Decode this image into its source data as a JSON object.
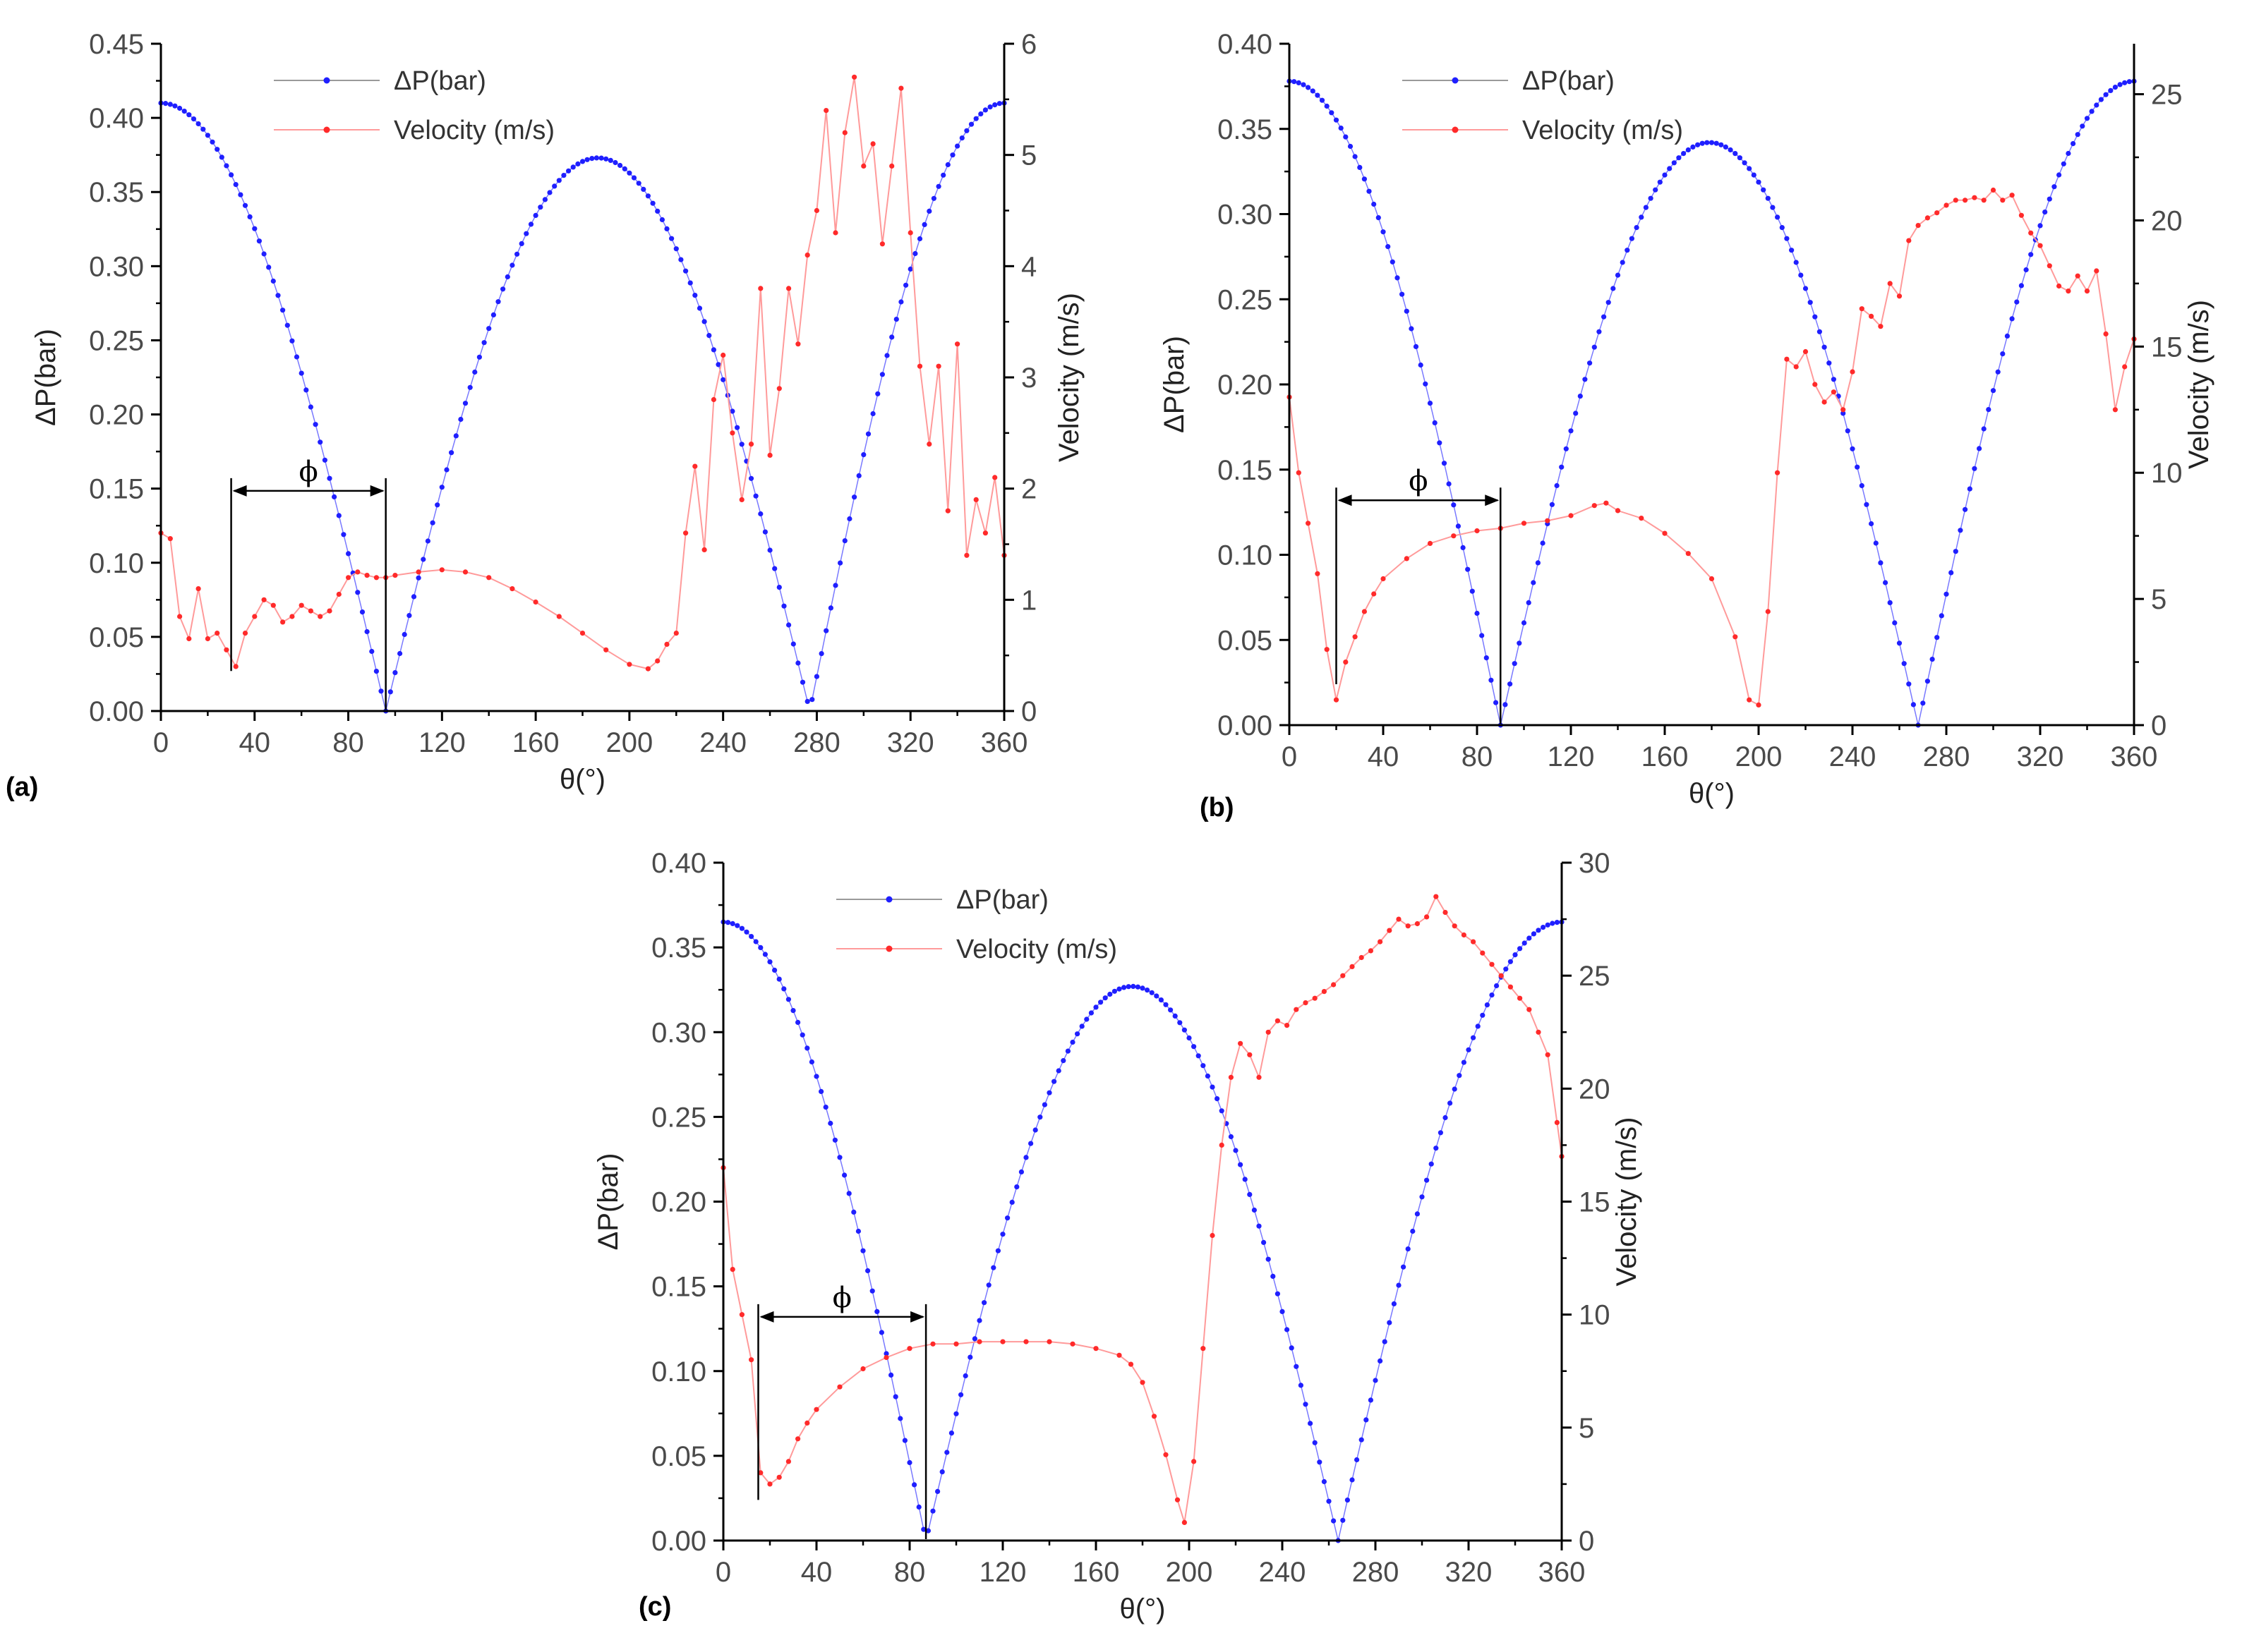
{
  "figure": {
    "colors": {
      "pressure": "#1f1fff",
      "velocity": "#ff2a2a",
      "velocity_line": "#ff9a9a",
      "axis": "#000000"
    }
  },
  "chart_data": [
    {
      "type": "line",
      "panel_label": "(a)",
      "xlabel": "θ(°)",
      "ylabel": "ΔP(bar)",
      "y2label": "Velocity (m/s)",
      "xlim": [
        0,
        360
      ],
      "ylim": [
        0,
        0.45
      ],
      "y2lim": [
        0,
        6
      ],
      "xticks": [
        "0",
        "40",
        "80",
        "120",
        "160",
        "200",
        "240",
        "280",
        "320",
        "360"
      ],
      "yticks": [
        "0.00",
        "0.05",
        "0.10",
        "0.15",
        "0.20",
        "0.25",
        "0.30",
        "0.35",
        "0.40",
        "0.45"
      ],
      "y2ticks": [
        "0",
        "1",
        "2",
        "3",
        "4",
        "5",
        "6"
      ],
      "legend": [
        "ΔP(bar)",
        "Velocity (m/s)"
      ],
      "phi_label": "ϕ",
      "phi_range": [
        30,
        96
      ],
      "pressure": {
        "name": "ΔP(bar)",
        "peak1": 0.41,
        "peak2": 0.373,
        "peak2_at": 183,
        "zero1": 96,
        "zero2": 277
      },
      "velocity": {
        "name": "Velocity (m/s)",
        "x": [
          0,
          4,
          8,
          12,
          16,
          20,
          24,
          28,
          32,
          36,
          40,
          44,
          48,
          52,
          56,
          60,
          64,
          68,
          72,
          76,
          80,
          84,
          88,
          92,
          96,
          100,
          110,
          120,
          130,
          140,
          150,
          160,
          170,
          180,
          190,
          200,
          208,
          212,
          216,
          220,
          224,
          228,
          232,
          236,
          240,
          244,
          248,
          252,
          256,
          260,
          264,
          268,
          272,
          276,
          280,
          284,
          288,
          292,
          296,
          300,
          304,
          308,
          312,
          316,
          320,
          324,
          328,
          332,
          336,
          340,
          344,
          348,
          352,
          356,
          360
        ],
        "values": [
          1.6,
          1.55,
          0.85,
          0.65,
          1.1,
          0.65,
          0.7,
          0.55,
          0.4,
          0.7,
          0.85,
          1.0,
          0.95,
          0.8,
          0.85,
          0.95,
          0.9,
          0.85,
          0.9,
          1.05,
          1.2,
          1.25,
          1.22,
          1.2,
          1.2,
          1.22,
          1.25,
          1.27,
          1.25,
          1.2,
          1.1,
          0.98,
          0.85,
          0.7,
          0.55,
          0.42,
          0.38,
          0.45,
          0.6,
          0.7,
          1.6,
          2.2,
          1.45,
          2.8,
          3.2,
          2.5,
          1.9,
          2.4,
          3.8,
          2.3,
          2.9,
          3.8,
          3.3,
          4.1,
          4.5,
          5.4,
          4.3,
          5.2,
          5.7,
          4.9,
          5.1,
          4.2,
          4.9,
          5.6,
          4.3,
          3.1,
          2.4,
          3.1,
          1.8,
          3.3,
          1.4,
          1.9,
          1.6,
          2.1,
          1.4
        ]
      }
    },
    {
      "type": "line",
      "panel_label": "(b)",
      "xlabel": "θ(°)",
      "ylabel": "ΔP(bar)",
      "y2label": "Velocity (m/s)",
      "xlim": [
        0,
        360
      ],
      "ylim": [
        0,
        0.4
      ],
      "y2lim": [
        0,
        27
      ],
      "xticks": [
        "0",
        "40",
        "80",
        "120",
        "160",
        "200",
        "240",
        "280",
        "320",
        "360"
      ],
      "yticks": [
        "0.00",
        "0.05",
        "0.10",
        "0.15",
        "0.20",
        "0.25",
        "0.30",
        "0.35",
        "0.40"
      ],
      "y2ticks": [
        "0",
        "5",
        "10",
        "15",
        "20",
        "25"
      ],
      "legend": [
        "ΔP(bar)",
        "Velocity (m/s)"
      ],
      "phi_label": "ϕ",
      "phi_range": [
        20,
        90
      ],
      "pressure": {
        "name": "ΔP(bar)",
        "peak1": 0.378,
        "peak2": 0.342,
        "peak2_at": 178,
        "zero1": 90,
        "zero2": 268
      },
      "velocity": {
        "name": "Velocity (m/s)",
        "x": [
          0,
          4,
          8,
          12,
          16,
          20,
          24,
          28,
          32,
          36,
          40,
          50,
          60,
          70,
          80,
          90,
          100,
          110,
          120,
          130,
          135,
          140,
          150,
          160,
          170,
          180,
          190,
          196,
          200,
          204,
          208,
          212,
          216,
          220,
          224,
          228,
          232,
          236,
          240,
          244,
          248,
          252,
          256,
          260,
          264,
          268,
          272,
          276,
          280,
          284,
          288,
          292,
          296,
          300,
          304,
          308,
          312,
          316,
          320,
          324,
          328,
          332,
          336,
          340,
          344,
          348,
          352,
          356,
          360
        ],
        "values": [
          13,
          10,
          8,
          6,
          3,
          1,
          2.5,
          3.5,
          4.5,
          5.2,
          5.8,
          6.6,
          7.2,
          7.5,
          7.7,
          7.8,
          8.0,
          8.1,
          8.3,
          8.7,
          8.8,
          8.5,
          8.2,
          7.6,
          6.8,
          5.8,
          3.5,
          1.0,
          0.8,
          4.5,
          10,
          14.5,
          14.2,
          14.8,
          13.5,
          12.8,
          13.2,
          12.5,
          14.0,
          16.5,
          16.2,
          15.8,
          17.5,
          17.0,
          19.2,
          19.8,
          20.1,
          20.3,
          20.6,
          20.8,
          20.8,
          20.9,
          20.8,
          21.2,
          20.8,
          21.0,
          20.2,
          19.5,
          19.0,
          18.2,
          17.4,
          17.2,
          17.8,
          17.2,
          18.0,
          15.5,
          12.5,
          14.2,
          15.3
        ]
      }
    },
    {
      "type": "line",
      "panel_label": "(c)",
      "xlabel": "θ(°)",
      "ylabel": "ΔP(bar)",
      "y2label": "Velocity (m/s)",
      "xlim": [
        0,
        360
      ],
      "ylim": [
        0,
        0.4
      ],
      "y2lim": [
        0,
        30
      ],
      "xticks": [
        "0",
        "40",
        "80",
        "120",
        "160",
        "200",
        "240",
        "280",
        "320",
        "360"
      ],
      "yticks": [
        "0.00",
        "0.05",
        "0.10",
        "0.15",
        "0.20",
        "0.25",
        "0.30",
        "0.35",
        "0.40"
      ],
      "y2ticks": [
        "0",
        "5",
        "10",
        "15",
        "20",
        "25",
        "30"
      ],
      "legend": [
        "ΔP(bar)",
        "Velocity (m/s)"
      ],
      "phi_label": "ϕ",
      "phi_range": [
        15,
        87
      ],
      "pressure": {
        "name": "ΔP(bar)",
        "peak1": 0.365,
        "peak2": 0.327,
        "peak2_at": 175,
        "zero1": 87,
        "zero2": 264
      },
      "velocity": {
        "name": "Velocity (m/s)",
        "x": [
          0,
          4,
          8,
          12,
          16,
          20,
          24,
          28,
          32,
          36,
          40,
          50,
          60,
          70,
          80,
          90,
          100,
          110,
          120,
          130,
          140,
          150,
          160,
          170,
          175,
          180,
          185,
          190,
          195,
          198,
          202,
          206,
          210,
          214,
          218,
          222,
          226,
          230,
          234,
          238,
          242,
          246,
          250,
          254,
          258,
          262,
          266,
          270,
          274,
          278,
          282,
          286,
          290,
          294,
          298,
          302,
          306,
          310,
          314,
          318,
          322,
          326,
          330,
          334,
          338,
          342,
          346,
          350,
          354,
          358,
          360
        ],
        "values": [
          16.5,
          12,
          10,
          8,
          3,
          2.5,
          2.8,
          3.5,
          4.5,
          5.2,
          5.8,
          6.8,
          7.6,
          8.1,
          8.5,
          8.7,
          8.7,
          8.8,
          8.8,
          8.8,
          8.8,
          8.7,
          8.5,
          8.2,
          7.8,
          7.0,
          5.5,
          3.8,
          1.8,
          0.8,
          3.5,
          8.5,
          13.5,
          17.5,
          20.5,
          22.0,
          21.5,
          20.5,
          22.5,
          23.0,
          22.8,
          23.5,
          23.8,
          24.0,
          24.3,
          24.6,
          25.0,
          25.4,
          25.8,
          26.1,
          26.5,
          27.0,
          27.5,
          27.2,
          27.3,
          27.6,
          28.5,
          27.8,
          27.2,
          26.8,
          26.5,
          26.0,
          25.5,
          25.0,
          24.5,
          24.0,
          23.5,
          22.5,
          21.5,
          18.5,
          17.0
        ]
      }
    }
  ]
}
